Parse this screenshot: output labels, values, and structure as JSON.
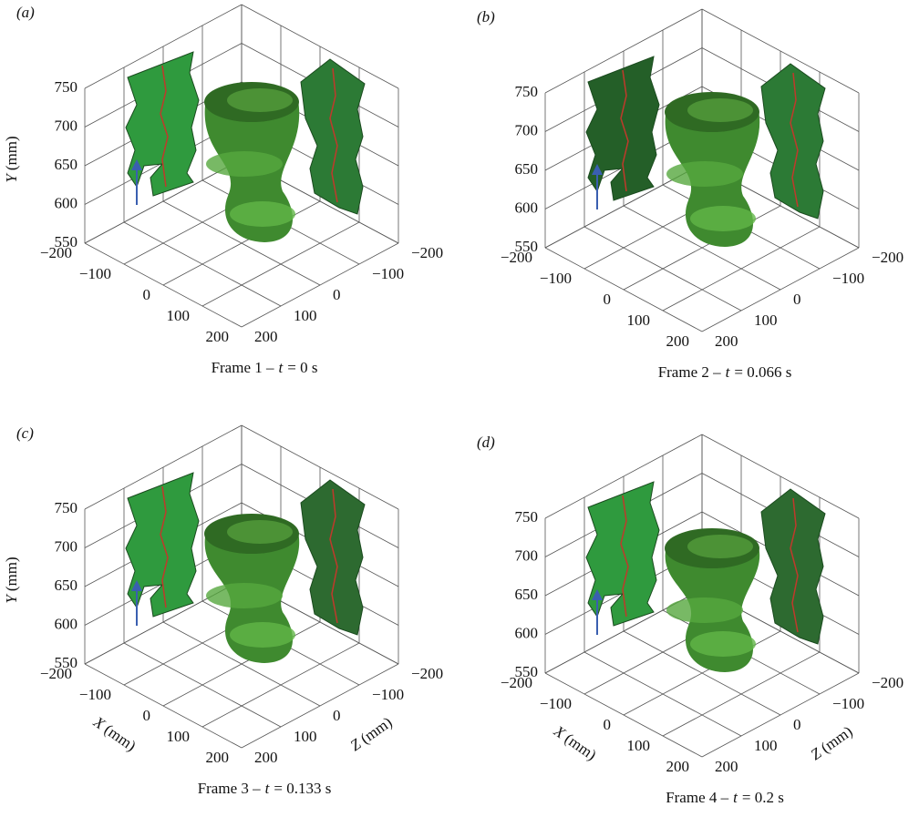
{
  "panels": [
    {
      "label": "(a)",
      "caption": {
        "frame": "Frame 1 –",
        "var": "t",
        "value": "= 0 s"
      },
      "y_label": {
        "var": "Y",
        "unit": "(mm)"
      },
      "y_ticks": [
        "550",
        "600",
        "650",
        "700",
        "750"
      ],
      "x_ticks": [
        "−200",
        "−100",
        "0",
        "100",
        "200"
      ],
      "z_ticks": [
        "−200",
        "−100",
        "0",
        "100",
        "200"
      ]
    },
    {
      "label": "(b)",
      "caption": {
        "frame": "Frame 2 –",
        "var": "t",
        "value": "= 0.066 s"
      },
      "y_ticks": [
        "550",
        "600",
        "650",
        "700",
        "750"
      ],
      "x_ticks": [
        "−200",
        "−100",
        "0",
        "100",
        "200"
      ],
      "z_ticks": [
        "−200",
        "−100",
        "0",
        "100",
        "200"
      ]
    },
    {
      "label": "(c)",
      "caption": {
        "frame": "Frame 3 –",
        "var": "t",
        "value": "= 0.133 s"
      },
      "y_label": {
        "var": "Y",
        "unit": "(mm)"
      },
      "x_label": {
        "var": "X",
        "unit": "(mm)"
      },
      "z_label": {
        "var": "Z",
        "unit": "(mm)"
      },
      "y_ticks": [
        "550",
        "600",
        "650",
        "700",
        "750"
      ],
      "x_ticks": [
        "−200",
        "−100",
        "0",
        "100",
        "200"
      ],
      "z_ticks": [
        "−200",
        "−100",
        "0",
        "100",
        "200"
      ]
    },
    {
      "label": "(d)",
      "caption": {
        "frame": "Frame 4 –",
        "var": "t",
        "value": "= 0.2 s"
      },
      "x_label": {
        "var": "X",
        "unit": "(mm)"
      },
      "z_label": {
        "var": "Z",
        "unit": "(mm)"
      },
      "y_ticks": [
        "550",
        "600",
        "650",
        "700",
        "750"
      ],
      "x_ticks": [
        "−200",
        "−100",
        "0",
        "100",
        "200"
      ],
      "z_ticks": [
        "−200",
        "−100",
        "0",
        "100",
        "200"
      ]
    }
  ]
}
